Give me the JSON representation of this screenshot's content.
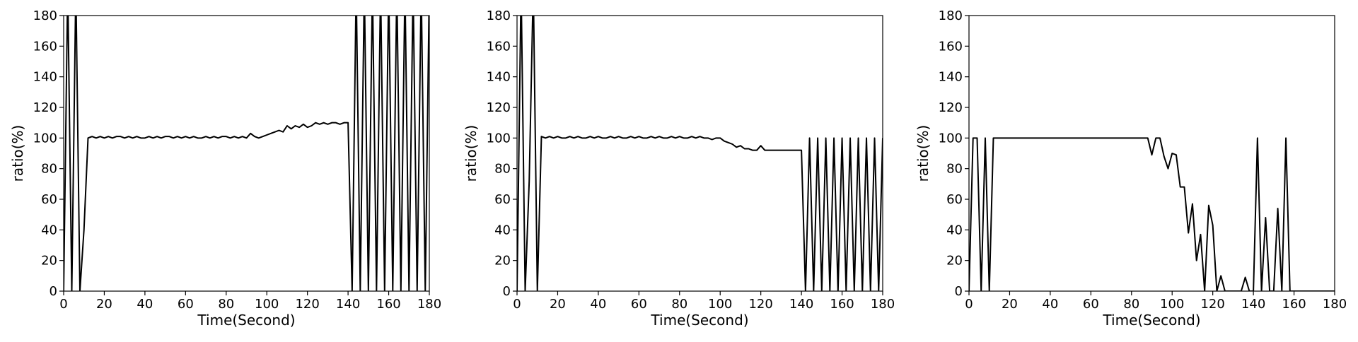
{
  "chart_data": [
    {
      "type": "line",
      "xlabel": "Time(Second)",
      "ylabel": "ratio(%)",
      "color": "#000000",
      "x": [
        0,
        2,
        4,
        6,
        8,
        10,
        12,
        14,
        16,
        18,
        20,
        22,
        24,
        26,
        28,
        30,
        32,
        34,
        36,
        38,
        40,
        42,
        44,
        46,
        48,
        50,
        52,
        54,
        56,
        58,
        60,
        62,
        64,
        66,
        68,
        70,
        72,
        74,
        76,
        78,
        80,
        82,
        84,
        86,
        88,
        90,
        92,
        94,
        96,
        98,
        100,
        102,
        104,
        106,
        108,
        110,
        112,
        114,
        116,
        118,
        120,
        122,
        124,
        126,
        128,
        130,
        132,
        134,
        136,
        138,
        140,
        142,
        144,
        146,
        148,
        150,
        152,
        154,
        156,
        158,
        160,
        162,
        164,
        166,
        168,
        170,
        172,
        174,
        176,
        178,
        180
      ],
      "values": [
        0,
        200,
        0,
        200,
        0,
        40,
        100,
        101,
        100,
        101,
        100,
        101,
        100,
        101,
        101,
        100,
        101,
        100,
        101,
        100,
        100,
        101,
        100,
        101,
        100,
        101,
        101,
        100,
        101,
        100,
        101,
        100,
        101,
        100,
        100,
        101,
        100,
        101,
        100,
        101,
        101,
        100,
        101,
        100,
        101,
        100,
        103,
        101,
        100,
        101,
        102,
        103,
        104,
        105,
        104,
        108,
        106,
        108,
        107,
        109,
        107,
        108,
        110,
        109,
        110,
        109,
        110,
        110,
        109,
        110,
        110,
        0,
        200,
        0,
        200,
        0,
        200,
        0,
        200,
        0,
        200,
        0,
        200,
        0,
        200,
        0,
        200,
        0,
        200,
        0,
        200
      ],
      "xlim": [
        0,
        180
      ],
      "ylim": [
        0,
        180
      ],
      "xticks": [
        0,
        20,
        40,
        60,
        80,
        100,
        120,
        140,
        160,
        180
      ],
      "yticks": [
        0,
        20,
        40,
        60,
        80,
        100,
        120,
        140,
        160,
        180
      ]
    },
    {
      "type": "line",
      "xlabel": "Time(Second)",
      "ylabel": "ratio(%)",
      "color": "#000000",
      "x": [
        0,
        2,
        4,
        6,
        8,
        10,
        12,
        14,
        16,
        18,
        20,
        22,
        24,
        26,
        28,
        30,
        32,
        34,
        36,
        38,
        40,
        42,
        44,
        46,
        48,
        50,
        52,
        54,
        56,
        58,
        60,
        62,
        64,
        66,
        68,
        70,
        72,
        74,
        76,
        78,
        80,
        82,
        84,
        86,
        88,
        90,
        92,
        94,
        96,
        98,
        100,
        102,
        104,
        106,
        108,
        110,
        112,
        114,
        116,
        118,
        120,
        122,
        124,
        126,
        128,
        130,
        132,
        134,
        136,
        138,
        140,
        142,
        144,
        146,
        148,
        150,
        152,
        154,
        156,
        158,
        160,
        162,
        164,
        166,
        168,
        170,
        172,
        174,
        176,
        178,
        180
      ],
      "values": [
        0,
        200,
        0,
        72,
        200,
        0,
        101,
        100,
        101,
        100,
        101,
        100,
        100,
        101,
        100,
        101,
        100,
        100,
        101,
        100,
        101,
        100,
        100,
        101,
        100,
        101,
        100,
        100,
        101,
        100,
        101,
        100,
        100,
        101,
        100,
        101,
        100,
        100,
        101,
        100,
        101,
        100,
        100,
        101,
        100,
        101,
        100,
        100,
        99,
        100,
        100,
        98,
        97,
        96,
        94,
        95,
        93,
        93,
        92,
        92,
        95,
        92,
        92,
        92,
        92,
        92,
        92,
        92,
        92,
        92,
        92,
        0,
        100,
        0,
        100,
        0,
        100,
        0,
        100,
        0,
        100,
        0,
        100,
        0,
        100,
        0,
        100,
        0,
        100,
        0,
        100
      ],
      "xlim": [
        0,
        180
      ],
      "ylim": [
        0,
        180
      ],
      "xticks": [
        0,
        20,
        40,
        60,
        80,
        100,
        120,
        140,
        160,
        180
      ],
      "yticks": [
        0,
        20,
        40,
        60,
        80,
        100,
        120,
        140,
        160,
        180
      ]
    },
    {
      "type": "line",
      "xlabel": "Time(Second)",
      "ylabel": "ratio(%)",
      "color": "#000000",
      "x": [
        0,
        2,
        4,
        6,
        8,
        10,
        12,
        14,
        16,
        18,
        20,
        22,
        24,
        26,
        28,
        30,
        32,
        34,
        36,
        38,
        40,
        42,
        44,
        46,
        48,
        50,
        52,
        54,
        56,
        58,
        60,
        62,
        64,
        66,
        68,
        70,
        72,
        74,
        76,
        78,
        80,
        82,
        84,
        86,
        88,
        90,
        92,
        94,
        96,
        98,
        100,
        102,
        104,
        106,
        108,
        110,
        112,
        114,
        116,
        118,
        120,
        122,
        124,
        126,
        128,
        130,
        132,
        134,
        136,
        138,
        140,
        142,
        144,
        146,
        148,
        150,
        152,
        154,
        156,
        158,
        160,
        162,
        164,
        166,
        168,
        170,
        172,
        174,
        176,
        178,
        180
      ],
      "values": [
        0,
        100,
        100,
        0,
        100,
        0,
        100,
        100,
        100,
        100,
        100,
        100,
        100,
        100,
        100,
        100,
        100,
        100,
        100,
        100,
        100,
        100,
        100,
        100,
        100,
        100,
        100,
        100,
        100,
        100,
        100,
        100,
        100,
        100,
        100,
        100,
        100,
        100,
        100,
        100,
        100,
        100,
        100,
        100,
        100,
        89,
        100,
        100,
        88,
        80,
        90,
        89,
        68,
        68,
        38,
        57,
        20,
        37,
        0,
        56,
        43,
        0,
        10,
        0,
        0,
        0,
        0,
        0,
        9,
        0,
        0,
        100,
        0,
        48,
        0,
        0,
        54,
        0,
        100,
        0,
        0,
        0,
        0,
        0,
        0,
        0,
        0,
        0,
        0,
        0,
        0
      ],
      "xlim": [
        0,
        180
      ],
      "ylim": [
        0,
        180
      ],
      "xticks": [
        0,
        20,
        40,
        60,
        80,
        100,
        120,
        140,
        160,
        180
      ],
      "yticks": [
        0,
        20,
        40,
        60,
        80,
        100,
        120,
        140,
        160,
        180
      ]
    }
  ]
}
